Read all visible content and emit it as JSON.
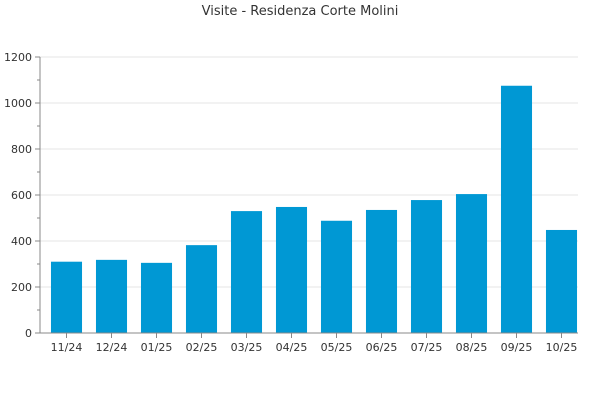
{
  "chart_data": {
    "type": "bar",
    "title": "Visite - Residenza Corte Molini",
    "xlabel": "",
    "ylabel": "",
    "categories": [
      "11/24",
      "12/24",
      "01/25",
      "02/25",
      "03/25",
      "04/25",
      "05/25",
      "06/25",
      "07/25",
      "08/25",
      "09/25",
      "10/25"
    ],
    "series": [
      {
        "values": [
          310,
          318,
          305,
          382,
          530,
          548,
          488,
          535,
          578,
          604,
          1075,
          448
        ],
        "color": "#0098d4"
      }
    ],
    "ylim": [
      0,
      1200
    ],
    "yticks": [
      0,
      200,
      400,
      600,
      800,
      1000,
      1200
    ],
    "grid": true,
    "legend": "none"
  }
}
